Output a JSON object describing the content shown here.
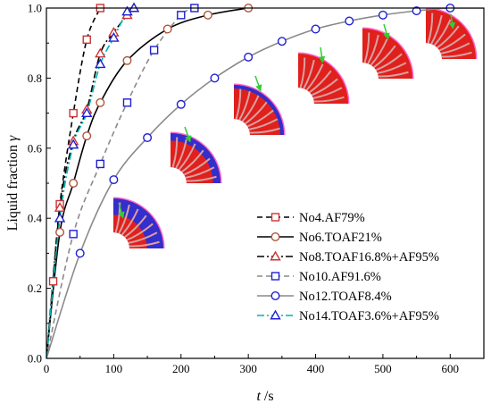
{
  "chart_data": {
    "type": "line",
    "xlabel": {
      "var": "t",
      "unit": " /s"
    },
    "ylabel": {
      "name": "Liquid fraction",
      "var": "γ"
    },
    "xlim": [
      0,
      650
    ],
    "ylim": [
      0,
      1.0
    ],
    "x_ticks": [
      "0",
      "100",
      "200",
      "300",
      "400",
      "500",
      "600"
    ],
    "y_ticks": [
      "0.0",
      "0.2",
      "0.4",
      "0.6",
      "0.8",
      "1.0"
    ],
    "x_tick_values": [
      0,
      100,
      200,
      300,
      400,
      500,
      600
    ],
    "y_tick_values": [
      0,
      0.2,
      0.4,
      0.6,
      0.8,
      1.0
    ],
    "grid": false,
    "legend_position": "lower-right",
    "series": [
      {
        "name": "No4.AF79%",
        "color": "#cc3333",
        "line_style": "dash",
        "line_color": "#000000",
        "marker": "square",
        "points": [
          [
            0,
            0
          ],
          [
            10,
            0.22
          ],
          [
            20,
            0.44
          ],
          [
            40,
            0.7
          ],
          [
            60,
            0.91
          ],
          [
            80,
            1.0
          ]
        ]
      },
      {
        "name": "No6.TOAF21%",
        "color": "#b0553a",
        "line_style": "solid",
        "line_color": "#000000",
        "marker": "circle",
        "points": [
          [
            0,
            0
          ],
          [
            20,
            0.36
          ],
          [
            40,
            0.5
          ],
          [
            60,
            0.635
          ],
          [
            80,
            0.73
          ],
          [
            120,
            0.85
          ],
          [
            180,
            0.94
          ],
          [
            240,
            0.98
          ],
          [
            300,
            1.0
          ]
        ]
      },
      {
        "name": "No8.TOAF16.8%+AF95%",
        "color": "#cc3333",
        "line_style": "dashdot",
        "line_color": "#000000",
        "marker": "triangle",
        "points": [
          [
            0,
            0
          ],
          [
            20,
            0.43
          ],
          [
            40,
            0.62
          ],
          [
            60,
            0.71
          ],
          [
            80,
            0.87
          ],
          [
            100,
            0.93
          ],
          [
            120,
            0.98
          ],
          [
            130,
            1.0
          ]
        ]
      },
      {
        "name": "No10.AF91.6%",
        "color": "#1f1fd6",
        "line_style": "dash",
        "line_color": "#8a8a8a",
        "marker": "square",
        "points": [
          [
            0,
            0
          ],
          [
            40,
            0.355
          ],
          [
            80,
            0.555
          ],
          [
            120,
            0.73
          ],
          [
            160,
            0.88
          ],
          [
            200,
            0.98
          ],
          [
            220,
            1.0
          ]
        ]
      },
      {
        "name": "No12.TOAF8.4%",
        "color": "#1f1fd6",
        "line_style": "solid",
        "line_color": "#8a8a8a",
        "marker": "circle",
        "points": [
          [
            0,
            0
          ],
          [
            50,
            0.3
          ],
          [
            100,
            0.51
          ],
          [
            150,
            0.63
          ],
          [
            200,
            0.725
          ],
          [
            250,
            0.8
          ],
          [
            300,
            0.86
          ],
          [
            350,
            0.905
          ],
          [
            400,
            0.94
          ],
          [
            450,
            0.963
          ],
          [
            500,
            0.98
          ],
          [
            550,
            0.992
          ],
          [
            600,
            1.0
          ],
          [
            650,
            1.0
          ]
        ]
      },
      {
        "name": "No14.TOAF3.6%+AF95%",
        "color": "#1f1fd6",
        "line_style": "dashdot",
        "line_color": "#00b3b3",
        "marker": "triangle",
        "points": [
          [
            0,
            0
          ],
          [
            20,
            0.4
          ],
          [
            40,
            0.61
          ],
          [
            60,
            0.7
          ],
          [
            80,
            0.84
          ],
          [
            100,
            0.915
          ],
          [
            120,
            0.99
          ],
          [
            130,
            1.0
          ]
        ]
      }
    ]
  },
  "insets": {
    "colors": {
      "solid": "#e0201c",
      "liquid": "#2030e0",
      "channel": "#d8a0a0",
      "outline": "#ff66cc",
      "arrow": "#33cc33"
    },
    "items": [
      {
        "name": "melt-stage-1",
        "liquid_fraction": 0.22
      },
      {
        "name": "melt-stage-2",
        "liquid_fraction": 0.1
      },
      {
        "name": "melt-stage-3",
        "liquid_fraction": 0.05
      },
      {
        "name": "melt-stage-4",
        "liquid_fraction": 0
      },
      {
        "name": "melt-stage-5",
        "liquid_fraction": 0
      },
      {
        "name": "melt-stage-6",
        "liquid_fraction": 0
      }
    ]
  }
}
